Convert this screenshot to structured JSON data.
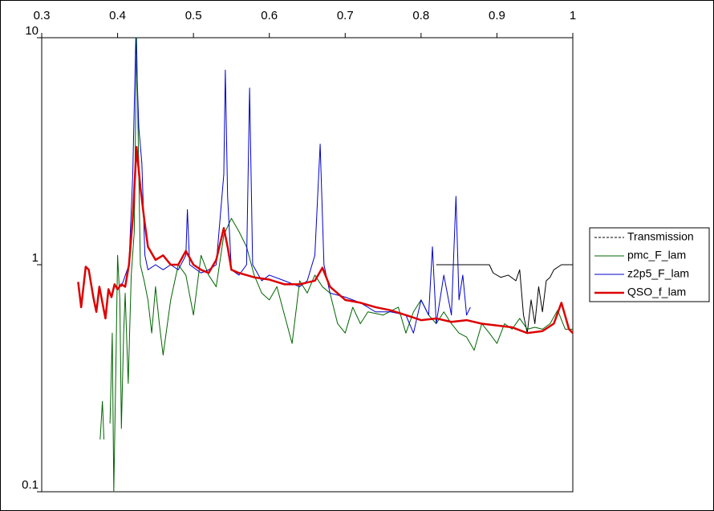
{
  "chart_data": {
    "type": "line",
    "y_scale": "log",
    "x_axis_position": "top",
    "legend_position": "right",
    "xlim": [
      0.3,
      1
    ],
    "xticks": [
      0.3,
      0.4,
      0.5,
      0.6,
      0.7,
      0.8,
      0.9,
      1
    ],
    "ylim": [
      0.1,
      10
    ],
    "yticks": [
      0.1,
      1,
      10
    ],
    "series": [
      {
        "name": "Transmission",
        "color": "#000000",
        "dash": "dashed",
        "width": 1,
        "x": [
          0.82,
          0.89,
          0.895,
          0.905,
          0.915,
          0.925,
          0.93,
          0.935,
          0.94,
          0.945,
          0.95,
          0.955,
          0.96,
          0.965,
          0.97,
          0.975,
          0.985,
          1.0
        ],
        "values": [
          1.0,
          1.0,
          0.92,
          0.88,
          0.9,
          0.85,
          0.95,
          0.6,
          0.5,
          0.7,
          0.55,
          0.8,
          0.62,
          0.85,
          0.88,
          0.95,
          1.0,
          1.0
        ]
      },
      {
        "name": "pmc_F_lam",
        "color": "#006400",
        "dash": "solid",
        "width": 1,
        "x": [
          0.377,
          0.38,
          0.382,
          0.386,
          0.39,
          0.393,
          0.395,
          0.398,
          0.4,
          0.403,
          0.405,
          0.408,
          0.41,
          0.414,
          0.418,
          0.422,
          0.425,
          0.43,
          0.435,
          0.44,
          0.445,
          0.45,
          0.455,
          0.46,
          0.47,
          0.48,
          0.49,
          0.5,
          0.51,
          0.52,
          0.53,
          0.54,
          0.55,
          0.56,
          0.57,
          0.58,
          0.59,
          0.6,
          0.61,
          0.62,
          0.63,
          0.64,
          0.65,
          0.66,
          0.67,
          0.68,
          0.69,
          0.7,
          0.71,
          0.72,
          0.73,
          0.75,
          0.77,
          0.78,
          0.79,
          0.8,
          0.81,
          0.82,
          0.83,
          0.84,
          0.85,
          0.86,
          0.87,
          0.88,
          0.89,
          0.9,
          0.91,
          0.92,
          0.93,
          0.94,
          0.95,
          0.96,
          0.97,
          0.98,
          0.99,
          1.0
        ],
        "values": [
          0.17,
          0.25,
          0.17,
          null,
          0.2,
          0.5,
          0.1,
          0.4,
          1.1,
          0.7,
          0.19,
          0.5,
          0.75,
          0.3,
          0.9,
          1.4,
          10,
          1.0,
          0.85,
          0.7,
          0.5,
          0.8,
          0.55,
          0.4,
          0.7,
          1.0,
          0.9,
          0.6,
          1.1,
          0.9,
          0.8,
          1.35,
          1.6,
          1.4,
          1.2,
          0.9,
          0.75,
          0.7,
          0.8,
          0.6,
          0.45,
          0.85,
          0.75,
          0.9,
          0.8,
          0.75,
          0.55,
          0.5,
          0.65,
          0.55,
          0.62,
          0.6,
          0.65,
          0.5,
          0.62,
          0.7,
          0.6,
          0.55,
          0.62,
          0.55,
          0.5,
          0.48,
          0.42,
          0.55,
          0.5,
          0.45,
          0.55,
          0.52,
          0.58,
          0.52,
          0.53,
          0.52,
          0.55,
          0.63,
          0.52,
          0.52
        ]
      },
      {
        "name": "z2p5_F_lam",
        "color": "#0000cc",
        "dash": "solid",
        "width": 1,
        "x": [
          0.405,
          0.415,
          0.42,
          0.424,
          0.428,
          0.432,
          0.436,
          0.44,
          0.45,
          0.46,
          0.47,
          0.48,
          0.49,
          0.492,
          0.495,
          0.51,
          0.52,
          0.53,
          0.54,
          0.542,
          0.545,
          0.55,
          0.56,
          0.57,
          0.574,
          0.578,
          0.59,
          0.6,
          0.62,
          0.64,
          0.65,
          0.66,
          0.667,
          0.672,
          0.68,
          0.7,
          0.72,
          0.74,
          0.76,
          0.78,
          0.79,
          0.8,
          0.81,
          0.815,
          0.82,
          0.83,
          0.84,
          0.846,
          0.85,
          0.855,
          0.86,
          0.865
        ],
        "values": [
          0.8,
          1.0,
          2.5,
          10,
          4,
          2.8,
          1.1,
          0.95,
          1.0,
          0.95,
          1.0,
          0.95,
          1.1,
          1.75,
          1.0,
          0.92,
          0.95,
          1.0,
          2.5,
          7.2,
          2.0,
          0.95,
          0.9,
          1.0,
          6.0,
          1.0,
          0.85,
          0.9,
          0.85,
          0.8,
          0.85,
          1.1,
          3.4,
          1.0,
          0.75,
          0.72,
          0.68,
          0.62,
          0.62,
          0.6,
          0.5,
          0.7,
          0.6,
          1.2,
          0.55,
          0.9,
          0.6,
          2.0,
          0.7,
          0.9,
          0.6,
          0.65
        ]
      },
      {
        "name": "QSO_f_lam",
        "color": "#dd0000",
        "dash": "solid",
        "width": 2.5,
        "x": [
          0.348,
          0.352,
          0.358,
          0.362,
          0.368,
          0.372,
          0.376,
          0.38,
          0.384,
          0.388,
          0.392,
          0.396,
          0.4,
          0.405,
          0.41,
          0.415,
          0.42,
          0.425,
          0.43,
          0.435,
          0.44,
          0.45,
          0.46,
          0.47,
          0.48,
          0.49,
          0.5,
          0.51,
          0.52,
          0.53,
          0.54,
          0.545,
          0.55,
          0.56,
          0.57,
          0.58,
          0.6,
          0.62,
          0.64,
          0.66,
          0.67,
          0.68,
          0.7,
          0.72,
          0.74,
          0.76,
          0.78,
          0.8,
          0.82,
          0.84,
          0.86,
          0.88,
          0.9,
          0.92,
          0.94,
          0.96,
          0.975,
          0.985,
          0.995,
          1.0
        ],
        "values": [
          0.84,
          0.65,
          0.98,
          0.95,
          0.72,
          0.62,
          0.8,
          0.68,
          0.58,
          0.78,
          0.72,
          0.82,
          0.78,
          0.82,
          0.8,
          1.0,
          1.6,
          3.3,
          2.2,
          1.6,
          1.2,
          1.05,
          1.1,
          1.0,
          1.0,
          1.15,
          1.0,
          0.95,
          0.92,
          1.05,
          1.45,
          1.2,
          0.95,
          0.92,
          0.9,
          0.88,
          0.86,
          0.82,
          0.82,
          0.85,
          0.97,
          0.8,
          0.7,
          0.68,
          0.65,
          0.63,
          0.6,
          0.57,
          0.58,
          0.56,
          0.57,
          0.55,
          0.54,
          0.53,
          0.5,
          0.51,
          0.55,
          0.68,
          0.52,
          0.5
        ]
      }
    ]
  }
}
